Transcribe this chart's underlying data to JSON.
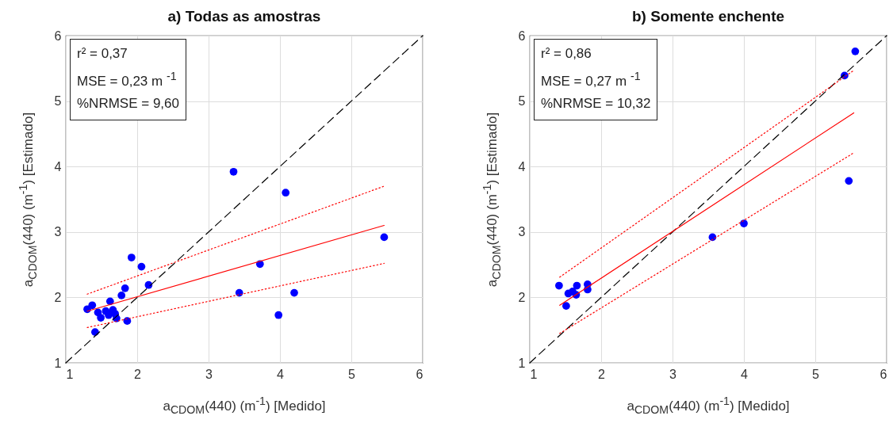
{
  "chart_data": [
    {
      "type": "scatter",
      "title": "a) Todas as amostras",
      "xlabel": "a$_{CDOM}$(440) (m$^{-1}$) [Medido]",
      "ylabel": "a$_{CDOM}$(440) (m$^{-1}$) [Estimado]",
      "xlim": [
        1,
        6
      ],
      "ylim": [
        1,
        6
      ],
      "xticks": [
        1,
        2,
        3,
        4,
        5,
        6
      ],
      "yticks": [
        1,
        2,
        3,
        4,
        5,
        6
      ],
      "grid": true,
      "annotations": [
        "r² = 0,37",
        "MSE = 0,23 m $^{-1}$",
        "%NRMSE = 9,60"
      ],
      "series": [
        {
          "type": "scatter",
          "color": "#0000ff",
          "marker": "circle",
          "x": [
            3.35,
            4.08,
            5.46,
            3.72,
            3.43,
            4.2,
            3.98,
            1.92,
            2.06,
            2.16,
            1.83,
            1.78,
            1.62,
            1.37,
            1.3,
            1.41,
            1.86,
            1.71,
            1.49,
            1.56,
            1.66,
            1.69,
            1.6,
            1.45
          ],
          "values": [
            3.92,
            3.6,
            2.92,
            2.51,
            2.07,
            2.07,
            1.73,
            2.61,
            2.47,
            2.19,
            2.14,
            2.03,
            1.94,
            1.88,
            1.82,
            1.47,
            1.64,
            1.68,
            1.69,
            1.79,
            1.81,
            1.75,
            1.73,
            1.77
          ]
        },
        {
          "type": "line",
          "color": "#000000",
          "line_style": "dashed",
          "x": [
            1,
            6
          ],
          "values": [
            1,
            6
          ]
        },
        {
          "type": "line",
          "color": "#ff0000",
          "line_style": "solid",
          "x": [
            1.3,
            5.46
          ],
          "values": [
            1.79,
            3.1
          ]
        },
        {
          "type": "line",
          "color": "#ff0000",
          "line_style": "dotted",
          "x": [
            1.3,
            5.46
          ],
          "values": [
            2.05,
            3.7
          ]
        },
        {
          "type": "line",
          "color": "#ff0000",
          "line_style": "dotted",
          "x": [
            1.3,
            5.46
          ],
          "values": [
            1.54,
            2.52
          ]
        }
      ]
    },
    {
      "type": "scatter",
      "title": "b) Somente enchente",
      "xlabel": "a$_{CDOM}$(440) (m$^{-1}$) [Medido]",
      "ylabel": "a$_{CDOM}$(440) (m$^{-1}$) [Estimado]",
      "xlim": [
        1,
        6
      ],
      "ylim": [
        1,
        6
      ],
      "xticks": [
        1,
        2,
        3,
        4,
        5,
        6
      ],
      "yticks": [
        1,
        2,
        3,
        4,
        5,
        6
      ],
      "grid": true,
      "annotations": [
        "r² = 0,86",
        "MSE = 0,27 m $^{-1}$",
        "%NRMSE = 10,32"
      ],
      "series": [
        {
          "type": "scatter",
          "color": "#0000ff",
          "marker": "circle",
          "x": [
            5.56,
            5.41,
            5.47,
            4.0,
            3.56,
            1.41,
            1.51,
            1.54,
            1.66,
            1.65,
            1.81,
            1.81,
            1.6
          ],
          "values": [
            5.76,
            5.39,
            3.78,
            3.13,
            2.92,
            2.18,
            1.87,
            2.06,
            2.18,
            2.04,
            2.2,
            2.12,
            2.09
          ]
        },
        {
          "type": "line",
          "color": "#000000",
          "line_style": "dashed",
          "x": [
            1,
            6
          ],
          "values": [
            1,
            6
          ]
        },
        {
          "type": "line",
          "color": "#ff0000",
          "line_style": "solid",
          "x": [
            1.42,
            5.54
          ],
          "values": [
            1.88,
            4.82
          ]
        },
        {
          "type": "line",
          "color": "#ff0000",
          "line_style": "dotted",
          "x": [
            1.42,
            5.54
          ],
          "values": [
            2.31,
            5.47
          ]
        },
        {
          "type": "line",
          "color": "#ff0000",
          "line_style": "dotted",
          "x": [
            1.42,
            5.54
          ],
          "values": [
            1.45,
            4.21
          ]
        }
      ]
    }
  ]
}
